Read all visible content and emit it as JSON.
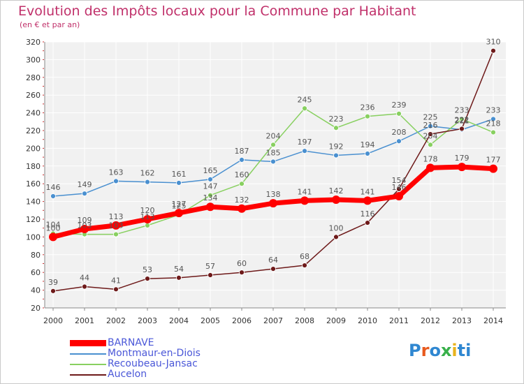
{
  "header": {
    "title": "Evolution des Impôts locaux pour la Commune par Habitant",
    "subtitle": "(en € et par an)"
  },
  "logo": {
    "text": "Proxiti",
    "colors": [
      "#2f87d1",
      "#e85a1e",
      "#2f87d1",
      "#38b04a",
      "#e8b31e",
      "#2f87d1",
      "#2f87d1"
    ]
  },
  "chart_data": {
    "type": "line",
    "title": "Evolution des Impôts locaux pour la Commune par Habitant",
    "subtitle": "(en € et par an)",
    "xlabel": "",
    "ylabel": "",
    "x": [
      2000,
      2001,
      2002,
      2003,
      2004,
      2005,
      2006,
      2007,
      2008,
      2009,
      2010,
      2011,
      2012,
      2013,
      2014
    ],
    "ylim": [
      20,
      320
    ],
    "yticks": [
      20,
      40,
      60,
      80,
      100,
      120,
      140,
      160,
      180,
      200,
      220,
      240,
      260,
      280,
      300,
      320
    ],
    "grid": true,
    "legend_position": "bottom-left",
    "series": [
      {
        "name": "BARNAVE",
        "color": "#ff0000",
        "values": [
          100,
          109,
          113,
          120,
          127,
          134,
          132,
          138,
          141,
          142,
          141,
          146,
          178,
          179,
          177
        ]
      },
      {
        "name": "Montmaur-en-Diois",
        "color": "#4a90d0",
        "values": [
          146,
          149,
          163,
          162,
          161,
          165,
          187,
          185,
          197,
          192,
          194,
          208,
          225,
          221,
          233
        ]
      },
      {
        "name": "Recoubeau-Jansac",
        "color": "#88d060",
        "values": [
          104,
          103,
          103,
          113,
          125,
          147,
          160,
          204,
          245,
          223,
          236,
          239,
          204,
          233,
          218
        ]
      },
      {
        "name": "Aucelon",
        "color": "#6e1a1a",
        "values": [
          39,
          44,
          41,
          53,
          54,
          57,
          60,
          64,
          68,
          100,
          116,
          154,
          216,
          222,
          310
        ]
      }
    ]
  }
}
